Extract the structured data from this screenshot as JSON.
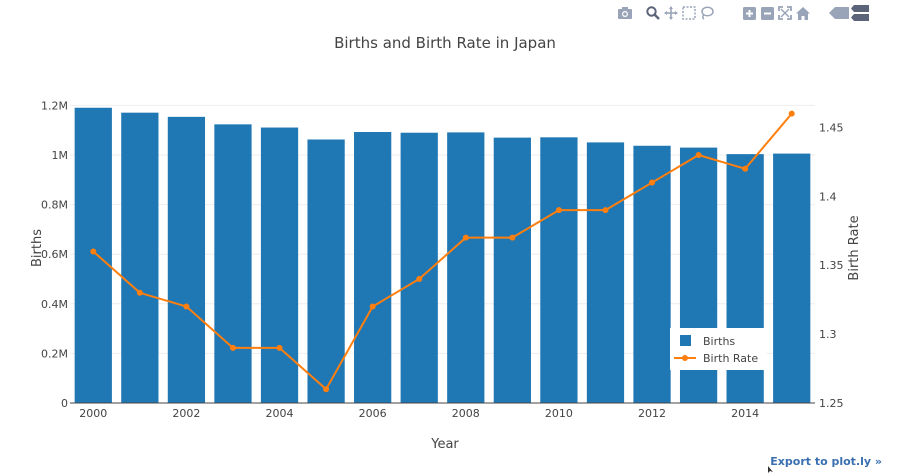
{
  "modebar": {
    "icons": [
      "camera-icon",
      "zoom-icon",
      "pan-icon",
      "box-select-icon",
      "lasso-select-icon",
      "zoom-in-icon",
      "zoom-out-icon",
      "autoscale-icon",
      "reset-axes-icon",
      "hover-closest-icon",
      "hover-compare-icon"
    ]
  },
  "export_link": "Export to plot.ly »",
  "colors": {
    "bar": "#1f77b4",
    "line": "#ff7f0e",
    "grid": "#eeeeee",
    "text": "#444444",
    "modebar_icon": "#9aa4b8"
  },
  "chart_data": {
    "type": "bar",
    "title": "Births and Birth Rate in Japan",
    "xlabel": "Year",
    "ylabel": "Births",
    "y2label": "Birth Rate",
    "x": [
      2000,
      2001,
      2002,
      2003,
      2004,
      2005,
      2006,
      2007,
      2008,
      2009,
      2010,
      2011,
      2012,
      2013,
      2014,
      2015
    ],
    "x_ticks": [
      2000,
      2002,
      2004,
      2006,
      2008,
      2010,
      2012,
      2014
    ],
    "x_tick_labels": [
      "2000",
      "2002",
      "2004",
      "2006",
      "2008",
      "2010",
      "2012",
      "2014"
    ],
    "ylim": [
      0,
      1250000
    ],
    "y_ticks": [
      0,
      200000,
      400000,
      600000,
      800000,
      1000000,
      1200000
    ],
    "y_tick_labels": [
      "0",
      "0.2M",
      "0.4M",
      "0.6M",
      "0.8M",
      "1M",
      "1.2M"
    ],
    "y2lim": [
      1.25,
      1.475
    ],
    "y2_ticks": [
      1.25,
      1.3,
      1.35,
      1.4,
      1.45
    ],
    "y2_tick_labels": [
      "1.25",
      "1.3",
      "1.35",
      "1.4",
      "1.45"
    ],
    "grid": true,
    "legend_position": "bottom-right",
    "series": [
      {
        "name": "Births",
        "type": "bar",
        "axis": "y",
        "values": [
          1190547,
          1170662,
          1153855,
          1123610,
          1110721,
          1062530,
          1092674,
          1089818,
          1091156,
          1070036,
          1071304,
          1050806,
          1037231,
          1029816,
          1003539,
          1005677
        ]
      },
      {
        "name": "Birth Rate",
        "type": "line",
        "axis": "y2",
        "values": [
          1.36,
          1.33,
          1.32,
          1.29,
          1.29,
          1.26,
          1.32,
          1.34,
          1.37,
          1.37,
          1.39,
          1.39,
          1.41,
          1.43,
          1.42,
          1.46
        ]
      }
    ]
  }
}
